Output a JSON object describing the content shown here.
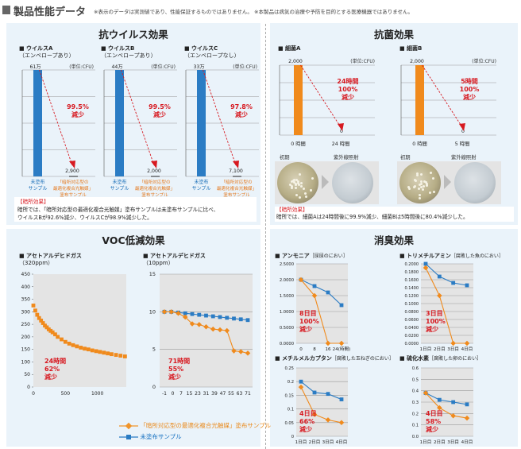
{
  "header": {
    "title": "製品性能データ",
    "note": "※表示のデータは実測値であり、性能保証するものではありません。 ※本製品は病気の治療や予防を目的とする医療機器ではありません。"
  },
  "panels": {
    "antivirus": {
      "title": "抗ウイルス効果",
      "unit": "(単位:CFU)",
      "xlabels": [
        "未塗布\nサンプル",
        "「暗所対応型の\n最適化複合光触媒」\n塗布サンプル"
      ],
      "notes": {
        "heading": "【暗所効果】",
        "line1": "暗所では、「暗所対応型の最適化複合光触媒」塗布サンプルは未塗布サンプルに比べ、",
        "line2": "ウイルスBが92.6%減少、ウイルスCが98.9%減少した。"
      }
    },
    "antibacterial": {
      "title": "抗菌効果",
      "unit": "(単位:CFU)",
      "photo_captions": [
        "初期",
        "紫外線照射"
      ],
      "notes": {
        "heading": "【暗所効果】",
        "line1": "暗所では、細菌Aは24時間後に99.9%減少、細菌Bは5時間後に80.4%減少した。"
      }
    },
    "voc": {
      "title": "VOC低減効果"
    },
    "deodorant": {
      "title": "消臭効果"
    }
  },
  "legend": {
    "coated": "「暗所対応型の最適化複合光触媒」塗布サンプル",
    "uncoated": "未塗布サンプル"
  },
  "chart_data": [
    {
      "type": "bar",
      "title": "■ ウイルスA",
      "subtitle": "（エンベロープあり）",
      "categories": [
        "未塗布サンプル",
        "「暗所対応型の最適化複合光触媒」塗布サンプル"
      ],
      "values": [
        610000,
        2900
      ],
      "value_labels": [
        "61万",
        "2,900"
      ],
      "reduction": [
        "99.5%",
        "減少"
      ]
    },
    {
      "type": "bar",
      "title": "■ ウイルスB",
      "subtitle": "（エンベロープあり）",
      "categories": [
        "未塗布サンプル",
        "「暗所対応型の最適化複合光触媒」塗布サンプル"
      ],
      "values": [
        440000,
        2000
      ],
      "value_labels": [
        "44万",
        "2,000"
      ],
      "reduction": [
        "99.5%",
        "減少"
      ]
    },
    {
      "type": "bar",
      "title": "■ ウイルスC",
      "subtitle": "（エンベロープなし）",
      "categories": [
        "未塗布サンプル",
        "「暗所対応型の最適化複合光触媒」塗布サンプル"
      ],
      "values": [
        330000,
        7100
      ],
      "value_labels": [
        "33万",
        "7,100"
      ],
      "reduction": [
        "97.8%",
        "減少"
      ]
    },
    {
      "type": "bar",
      "title": "■ 細菌A",
      "categories": [
        "0 時間",
        "24 時間"
      ],
      "values": [
        2000,
        0
      ],
      "value_labels": [
        "2,000",
        "0"
      ],
      "reduction": [
        "24時間",
        "100%",
        "減少"
      ]
    },
    {
      "type": "bar",
      "title": "■ 細菌B",
      "categories": [
        "0 時間",
        "5 時間"
      ],
      "values": [
        2000,
        0
      ],
      "value_labels": [
        "2,000",
        "0"
      ],
      "reduction": [
        "5時間",
        "100%",
        "減少"
      ]
    },
    {
      "type": "line",
      "title": "■ アセトアルデヒドガス",
      "subtitle": "（320ppm）",
      "ylim": [
        0,
        450
      ],
      "yticks": [
        "0",
        "50",
        "100",
        "150",
        "200",
        "250",
        "300",
        "350",
        "400",
        "450"
      ],
      "xticks": [
        "0",
        "500",
        "1000"
      ],
      "x": [
        0,
        30,
        60,
        90,
        120,
        150,
        180,
        210,
        240,
        270,
        300,
        340,
        380,
        440,
        500,
        560,
        620,
        680,
        740,
        800,
        860,
        920,
        980,
        1040,
        1100,
        1160,
        1220,
        1290,
        1360,
        1430
      ],
      "series": [
        {
          "name": "「暗所対応型の最適化複合光触媒」塗布サンプル",
          "values": [
            325,
            305,
            288,
            275,
            265,
            255,
            245,
            238,
            230,
            224,
            218,
            210,
            200,
            190,
            180,
            173,
            167,
            162,
            157,
            153,
            150,
            146,
            143,
            140,
            137,
            134,
            131,
            128,
            125,
            122
          ]
        }
      ],
      "annotation": [
        "24時間",
        "62%",
        "減少"
      ]
    },
    {
      "type": "line",
      "title": "■ アセトアルデヒドガス",
      "subtitle": "（10ppm）",
      "ylim": [
        0,
        15
      ],
      "yticks": [
        "0",
        "5",
        "10",
        "15"
      ],
      "xticks": [
        "-1",
        "0",
        "7",
        "15",
        "23",
        "31",
        "39",
        "47",
        "55",
        "63",
        "71"
      ],
      "series": [
        {
          "name": "「暗所対応型の最適化複合光触媒」塗布サンプル",
          "values": [
            10,
            10,
            9.8,
            9.3,
            8.4,
            8.3,
            8.0,
            7.7,
            7.6,
            7.5,
            4.8,
            4.7,
            4.5
          ]
        },
        {
          "name": "未塗布サンプル",
          "values": [
            10,
            10,
            9.9,
            9.8,
            9.7,
            9.6,
            9.5,
            9.4,
            9.3,
            9.2,
            9.1,
            9.0,
            8.9
          ]
        }
      ],
      "annotation": [
        "71時間",
        "55%",
        "減少"
      ]
    },
    {
      "type": "line",
      "title": "■ アンモニア",
      "subtitle": "［尿尿のにおい］",
      "ylim": [
        0,
        2.5
      ],
      "yticks": [
        "0.0000",
        "0.5000",
        "1.0000",
        "1.5000",
        "2.0000",
        "2.5000"
      ],
      "categories": [
        "0",
        "8",
        "16",
        "24(時間)"
      ],
      "series": [
        {
          "name": "「暗所対応型の最適化複合光触媒」塗布サンプル",
          "values": [
            2.0,
            1.5,
            0,
            0
          ]
        },
        {
          "name": "未塗布サンプル",
          "values": [
            2.0,
            1.8,
            1.6,
            1.2
          ]
        }
      ],
      "annotation": [
        "8日目",
        "100%",
        "減少"
      ]
    },
    {
      "type": "line",
      "title": "■ トリメチルアミン",
      "subtitle": "［腐敗した魚のにおい］",
      "ylim": [
        0,
        0.2
      ],
      "yticks": [
        "0.0000",
        "0.0200",
        "0.0400",
        "0.0600",
        "0.0800",
        "0.1000",
        "0.1200",
        "0.1400",
        "0.1600",
        "0.1800",
        "0.2000"
      ],
      "categories": [
        "1日目",
        "2日目",
        "3日目",
        "4日目"
      ],
      "series": [
        {
          "name": "「暗所対応型の最適化複合光触媒」塗布サンプル",
          "values": [
            0.19,
            0.12,
            0,
            0
          ]
        },
        {
          "name": "未塗布サンプル",
          "values": [
            0.2,
            0.168,
            0.152,
            0.146
          ]
        }
      ],
      "annotation": [
        "3日目",
        "100%",
        "減少"
      ]
    },
    {
      "type": "line",
      "title": "■ メチルメルカプタン",
      "subtitle": "［腐敗した玉ねぎのにおい］",
      "ylim": [
        0,
        0.25
      ],
      "yticks": [
        "0",
        "0.05",
        "0.1",
        "0.15",
        "0.2",
        "0.25"
      ],
      "categories": [
        "1日目",
        "2日目",
        "3日目",
        "4日目"
      ],
      "series": [
        {
          "name": "「暗所対応型の最適化複合光触媒」塗布サンプル",
          "values": [
            0.18,
            0.08,
            0.06,
            0.05
          ]
        },
        {
          "name": "未塗布サンプル",
          "values": [
            0.2,
            0.16,
            0.155,
            0.135
          ]
        }
      ],
      "annotation": [
        "4日目",
        "66%",
        "減少"
      ]
    },
    {
      "type": "line",
      "title": "■ 硫化水素",
      "subtitle": "［腐敗した卵のにおい］",
      "ylim": [
        0,
        0.6
      ],
      "yticks": [
        "0.0",
        "0.1",
        "0.2",
        "0.3",
        "0.4",
        "0.5",
        "0.6"
      ],
      "categories": [
        "1日目",
        "2日目",
        "3日目",
        "4日目"
      ],
      "series": [
        {
          "name": "「暗所対応型の最適化複合光触媒」塗布サンプル",
          "values": [
            0.38,
            0.25,
            0.18,
            0.16
          ]
        },
        {
          "name": "未塗布サンプル",
          "values": [
            0.38,
            0.32,
            0.3,
            0.28
          ]
        }
      ],
      "annotation": [
        "4日目",
        "58%",
        "減少"
      ]
    }
  ]
}
